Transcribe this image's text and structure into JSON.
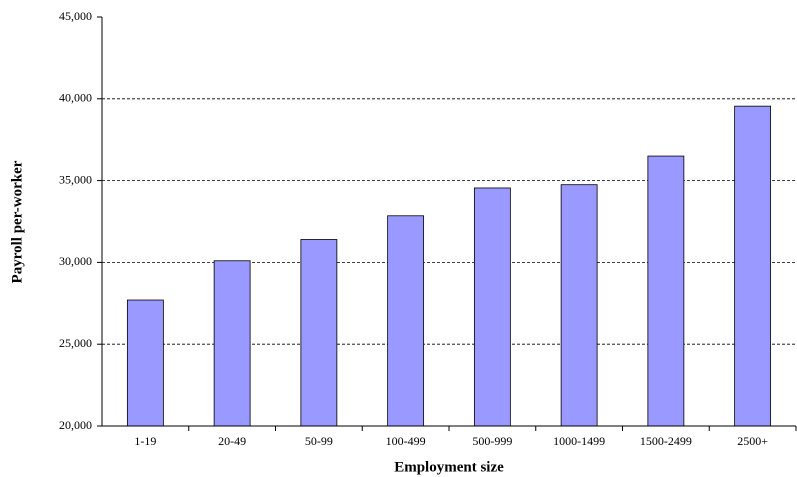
{
  "chart_data": {
    "type": "bar",
    "x_label": "Employment size",
    "y_label": "Payroll per-worker",
    "categories": [
      "1-19",
      "20-49",
      "50-99",
      "100-499",
      "500-999",
      "1000-1499",
      "1500-2499",
      "2500+"
    ],
    "values": [
      27700,
      30100,
      31400,
      32850,
      34550,
      34750,
      36500,
      39550
    ],
    "color": "#9999ff",
    "ylim": [
      20000,
      45000
    ],
    "yticks": [
      {
        "value": 20000,
        "label": "20,000"
      },
      {
        "value": 25000,
        "label": "25,000"
      },
      {
        "value": 30000,
        "label": "30,000"
      },
      {
        "value": 35000,
        "label": "35,000"
      },
      {
        "value": 40000,
        "label": "40,000"
      },
      {
        "value": 45000,
        "label": "45,000"
      }
    ],
    "grid": true
  }
}
